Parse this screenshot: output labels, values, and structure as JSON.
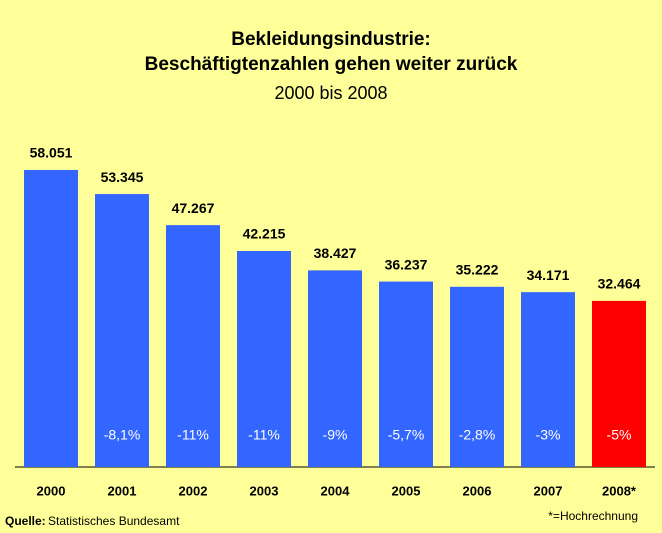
{
  "chart_data": {
    "type": "bar",
    "title": "Bekleidungsindustrie:",
    "subtitle": "Beschäftigtenzahlen gehen weiter zurück",
    "period": "2000 bis 2008",
    "categories": [
      "2000",
      "2001",
      "2002",
      "2003",
      "2004",
      "2005",
      "2006",
      "2007",
      "2008*"
    ],
    "values": [
      58051,
      53345,
      47267,
      42215,
      38427,
      36237,
      35222,
      34171,
      32464
    ],
    "value_labels": [
      "58.051",
      "53.345",
      "47.267",
      "42.215",
      "38.427",
      "36.237",
      "35.222",
      "34.171",
      "32.464"
    ],
    "change_labels": [
      null,
      "-8,1%",
      "-11%",
      "-11%",
      "-9%",
      "-5,7%",
      "-2,8%",
      "-3%",
      "-5%"
    ],
    "colors": [
      "#3366ff",
      "#3366ff",
      "#3366ff",
      "#3366ff",
      "#3366ff",
      "#3366ff",
      "#3366ff",
      "#3366ff",
      "#ff0000"
    ],
    "ylim": [
      0,
      60000
    ],
    "source_label": "Quelle:",
    "source": "Statistisches Bundesamt",
    "footnote": "*=Hochrechnung"
  }
}
